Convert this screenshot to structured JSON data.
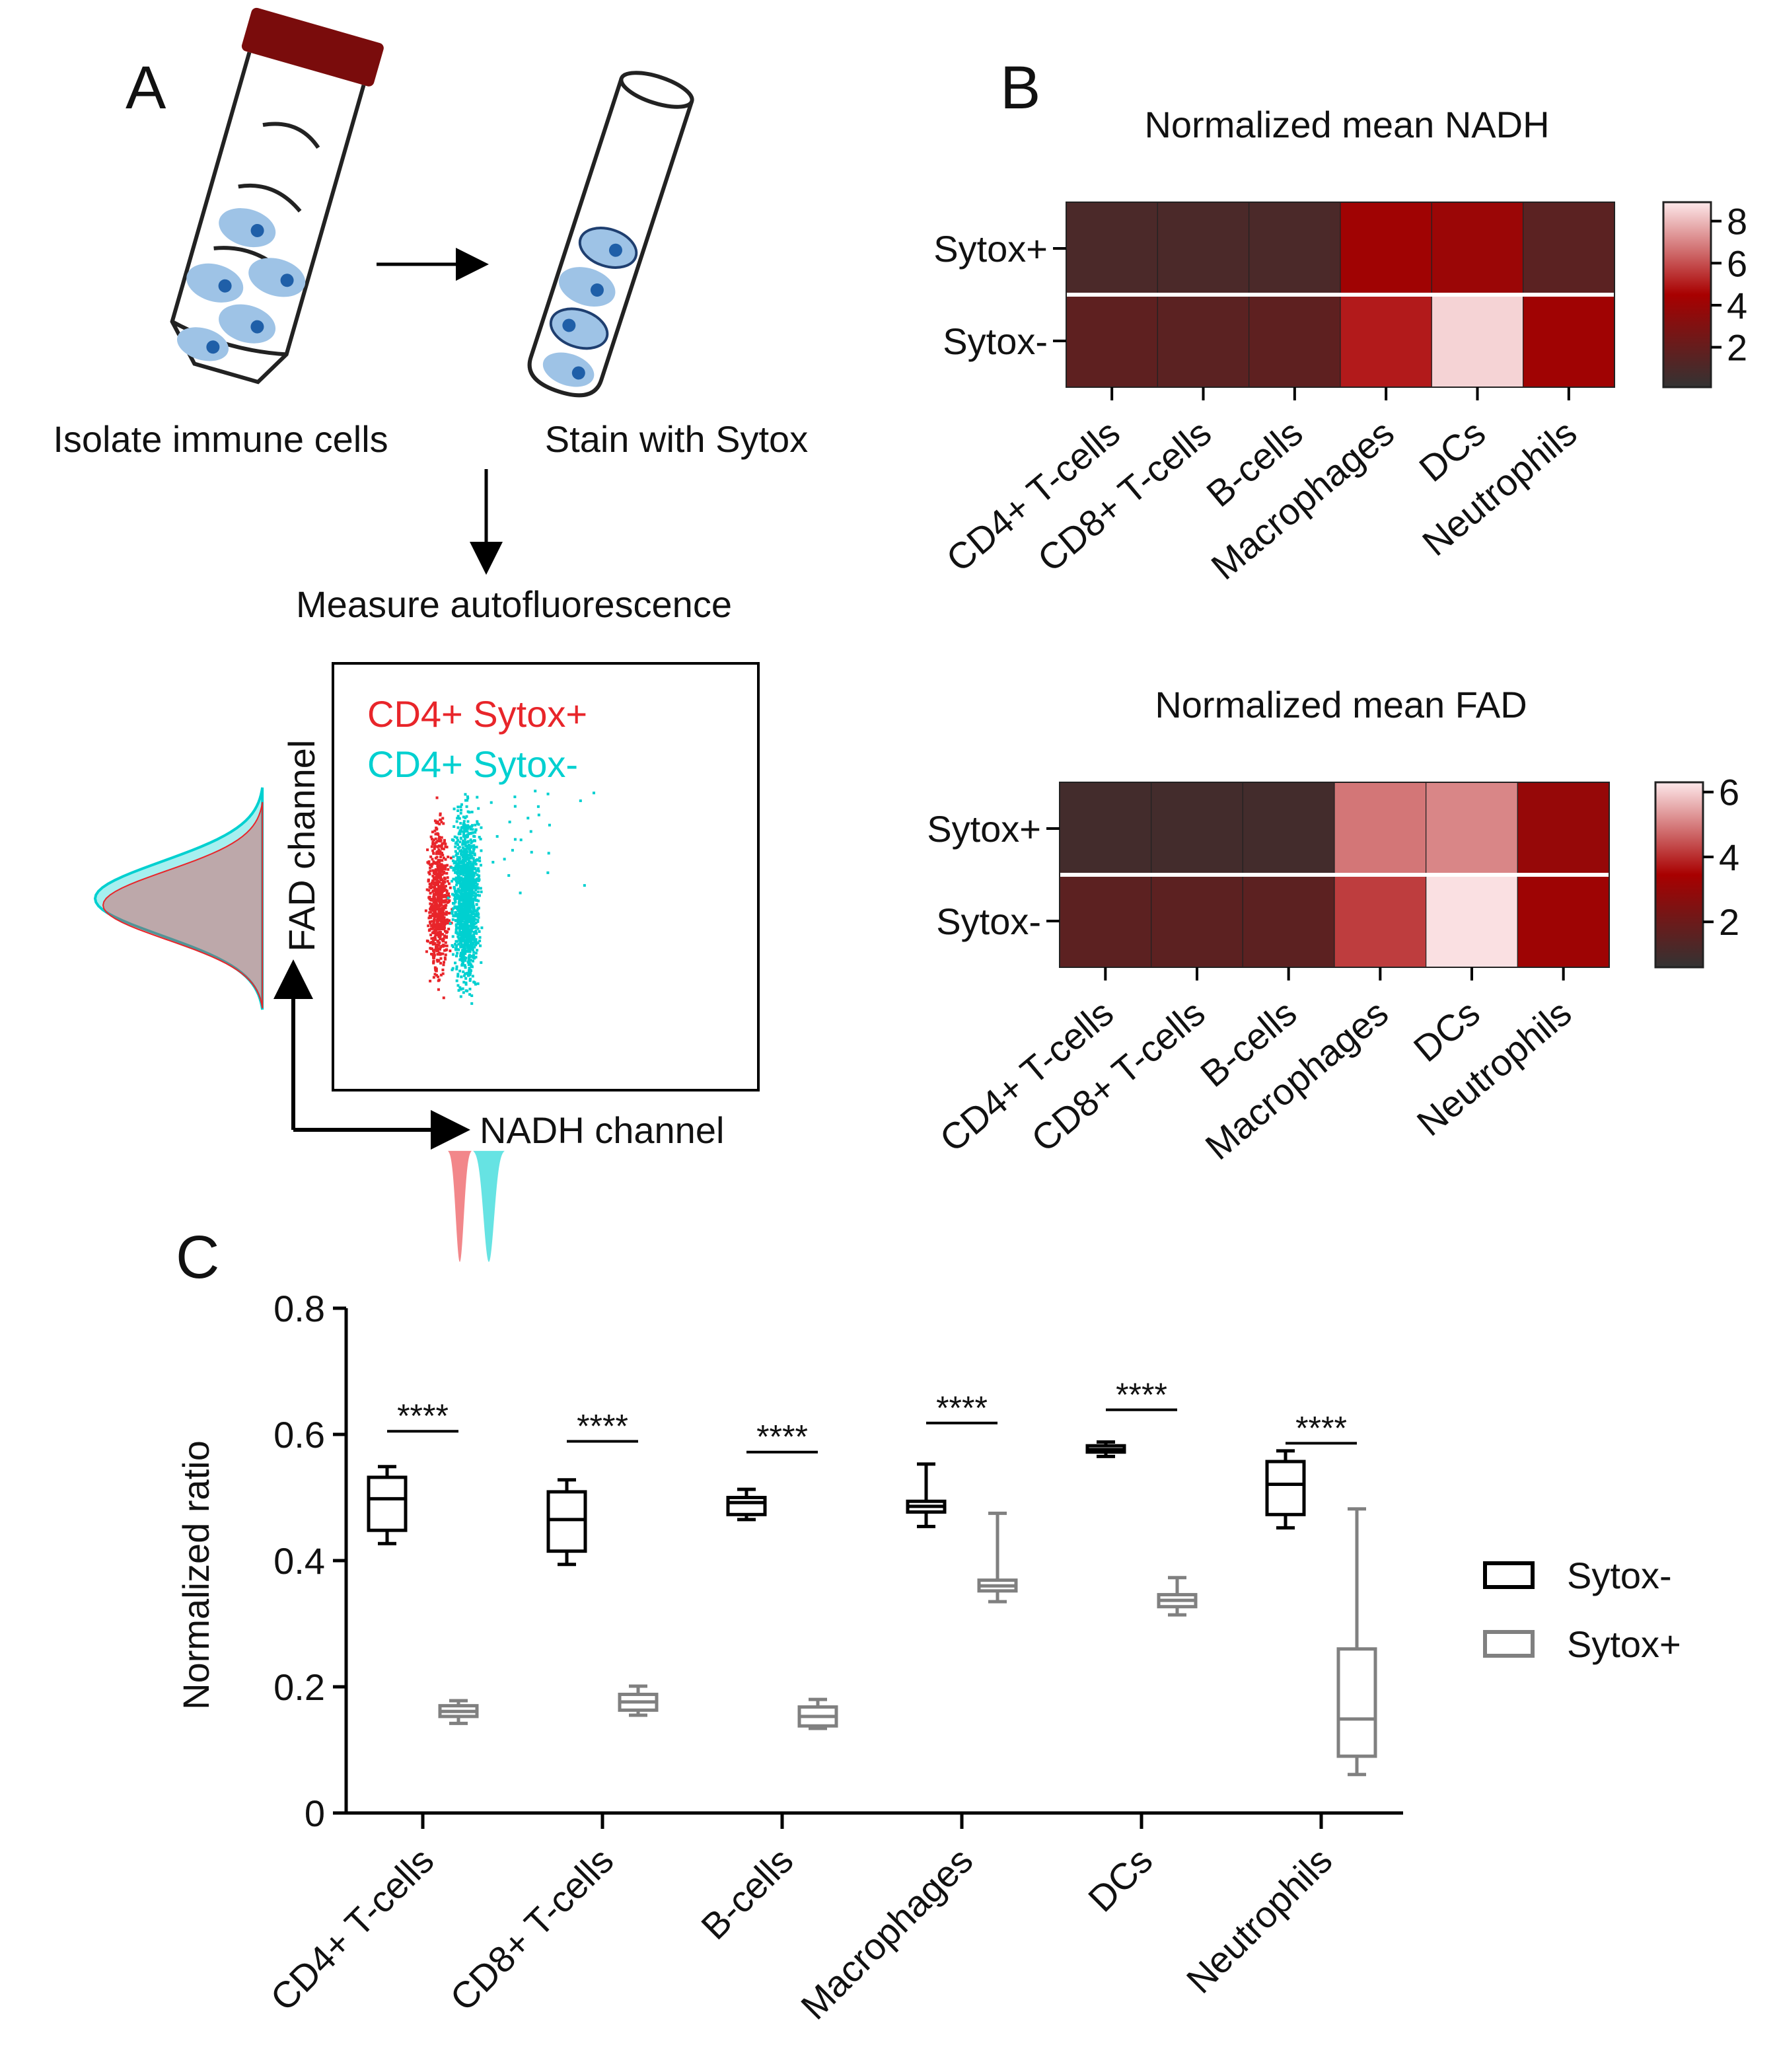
{
  "diagram": {
    "panel": "A",
    "steps": [
      "Isolate immune cells",
      "Stain with Sytox",
      "Measure autofluorescence"
    ],
    "scatter_legend": [
      "CD4+ Sytox+",
      "CD4+ Sytox-"
    ],
    "scatter_colors": [
      "#e8252a",
      "#00d0d0"
    ],
    "x_axis": "NADH channel",
    "y_axis": "FAD channel"
  },
  "chart_data": [
    {
      "type": "heatmap",
      "panel": "B",
      "title": "Normalized mean NADH",
      "rows": [
        "Sytox+",
        "Sytox-"
      ],
      "columns": [
        "CD4+ T-cells",
        "CD8+ T-cells",
        "B-cells",
        "Macrophages",
        "DCs",
        "Neutrophils"
      ],
      "values": [
        [
          1.0,
          1.0,
          1.0,
          4.2,
          4.0,
          1.6
        ],
        [
          1.7,
          1.6,
          1.7,
          5.0,
          8.5,
          4.2
        ]
      ],
      "zlim": [
        0.1,
        8.9
      ],
      "zticks": [
        2,
        4,
        6,
        8
      ],
      "colorscale": [
        "#333333",
        "#a80000",
        "#fde8ea"
      ]
    },
    {
      "type": "heatmap",
      "title": "Normalized mean FAD",
      "rows": [
        "Sytox+",
        "Sytox-"
      ],
      "columns": [
        "CD4+ T-cells",
        "CD8+ T-cells",
        "B-cells",
        "Macrophages",
        "DCs",
        "Neutrophils"
      ],
      "values": [
        [
          1.0,
          1.0,
          1.0,
          4.9,
          5.1,
          3.0
        ],
        [
          1.6,
          1.6,
          1.6,
          4.2,
          6.2,
          3.2
        ]
      ],
      "zlim": [
        0.6,
        6.3
      ],
      "zticks": [
        2,
        4,
        6
      ],
      "colorscale": [
        "#333333",
        "#a80000",
        "#fde8ea"
      ]
    },
    {
      "type": "box",
      "panel": "C",
      "ylabel": "Normalized ratio",
      "categories": [
        "CD4+ T-cells",
        "CD8+ T-cells",
        "B-cells",
        "Macrophages",
        "DCs",
        "Neutrophils"
      ],
      "series": [
        {
          "name": "Sytox-",
          "color": "#000000",
          "min": [
            0.427,
            0.394,
            0.465,
            0.454,
            0.565,
            0.452
          ],
          "q1": [
            0.448,
            0.415,
            0.473,
            0.477,
            0.572,
            0.473
          ],
          "median": [
            0.498,
            0.465,
            0.492,
            0.486,
            0.576,
            0.521
          ],
          "q3": [
            0.532,
            0.509,
            0.5,
            0.494,
            0.582,
            0.557
          ],
          "max": [
            0.549,
            0.528,
            0.513,
            0.553,
            0.588,
            0.574
          ]
        },
        {
          "name": "Sytox+",
          "color": "#808080",
          "min": [
            0.142,
            0.155,
            0.134,
            0.335,
            0.314,
            0.061
          ],
          "q1": [
            0.153,
            0.163,
            0.138,
            0.352,
            0.327,
            0.09
          ],
          "median": [
            0.161,
            0.176,
            0.153,
            0.36,
            0.337,
            0.149
          ],
          "q3": [
            0.17,
            0.188,
            0.168,
            0.369,
            0.346,
            0.26
          ],
          "max": [
            0.178,
            0.201,
            0.18,
            0.475,
            0.373,
            0.482
          ]
        }
      ],
      "ylim": [
        0,
        0.8
      ],
      "yticks": [
        0,
        0.2,
        0.4,
        0.6,
        0.8
      ],
      "annotations": [
        {
          "text": "****",
          "y": 0.605
        },
        {
          "text": "****",
          "y": 0.589
        },
        {
          "text": "****",
          "y": 0.572
        },
        {
          "text": "****",
          "y": 0.618
        },
        {
          "text": "****",
          "y": 0.639
        },
        {
          "text": "****",
          "y": 0.586
        }
      ]
    }
  ]
}
